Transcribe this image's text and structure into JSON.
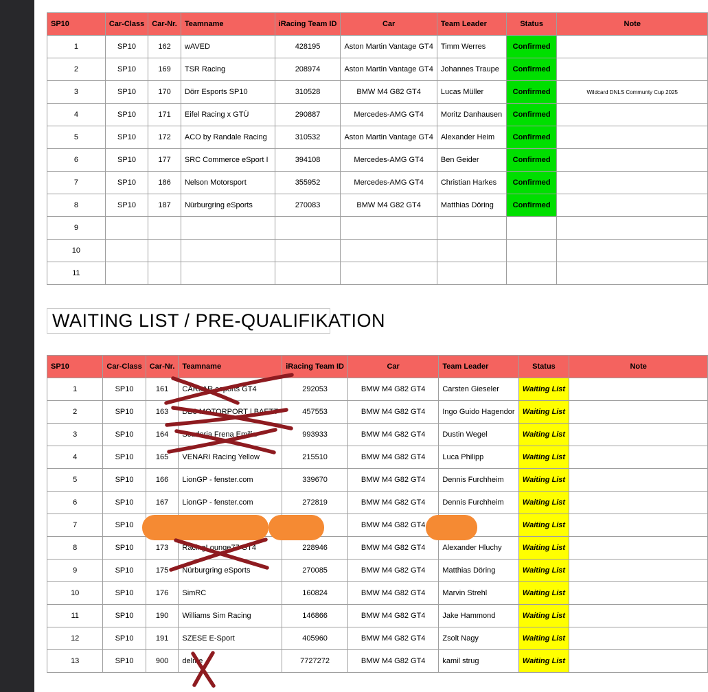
{
  "page": {
    "heading": "WAITING LIST / PRE-QUALIFIKATION"
  },
  "colors": {
    "header_bg": "#f4635f",
    "confirmed_bg": "#00df00",
    "waiting_bg": "#ffff00",
    "redaction_orange": "#f58a33",
    "cross_red": "#8e1b20",
    "sidebar_dark": "#28282b",
    "grid_line": "#9e9e9e"
  },
  "tables": [
    {
      "name": "confirmed",
      "headers": [
        "SP10",
        "Car-Class",
        "Car-Nr.",
        "Teamname",
        "iRacing Team ID",
        "Car",
        "Team Leader",
        "Status",
        "Note"
      ],
      "status_bg": "#00df00",
      "status_italic": false,
      "rows": [
        {
          "pos": "1",
          "car_class": "SP10",
          "car_nr": "162",
          "teamname": "wAVED",
          "team_id": "428195",
          "car": "Aston Martin Vantage GT4",
          "leader": "Timm Werres",
          "status": "Confirmed",
          "note": ""
        },
        {
          "pos": "2",
          "car_class": "SP10",
          "car_nr": "169",
          "teamname": "TSR Racing",
          "team_id": "208974",
          "car": "Aston Martin Vantage GT4",
          "leader": "Johannes Traupe",
          "status": "Confirmed",
          "note": ""
        },
        {
          "pos": "3",
          "car_class": "SP10",
          "car_nr": "170",
          "teamname": "Dörr Esports SP10",
          "team_id": "310528",
          "car": "BMW M4 G82 GT4",
          "leader": "Lucas Müller",
          "status": "Confirmed",
          "note": "Wildcard DNLS Communty Cup 2025"
        },
        {
          "pos": "4",
          "car_class": "SP10",
          "car_nr": "171",
          "teamname": "Eifel Racing x GTÜ",
          "team_id": "290887",
          "car": "Mercedes-AMG GT4",
          "leader": "Moritz Danhausen",
          "status": "Confirmed",
          "note": ""
        },
        {
          "pos": "5",
          "car_class": "SP10",
          "car_nr": "172",
          "teamname": "ACO by Randale Racing",
          "team_id": "310532",
          "car": "Aston Martin Vantage GT4",
          "leader": "Alexander Heim",
          "status": "Confirmed",
          "note": ""
        },
        {
          "pos": "6",
          "car_class": "SP10",
          "car_nr": "177",
          "teamname": "SRC Commerce eSport I",
          "team_id": "394108",
          "car": "Mercedes-AMG GT4",
          "leader": "Ben Geider",
          "status": "Confirmed",
          "note": ""
        },
        {
          "pos": "7",
          "car_class": "SP10",
          "car_nr": "186",
          "teamname": "Nelson Motorsport",
          "team_id": "355952",
          "car": "Mercedes-AMG GT4",
          "leader": "Christian Harkes",
          "status": "Confirmed",
          "note": ""
        },
        {
          "pos": "8",
          "car_class": "SP10",
          "car_nr": "187",
          "teamname": "Nürburgring eSports",
          "team_id": "270083",
          "car": "BMW M4 G82 GT4",
          "leader": "Matthias Döring",
          "status": "Confirmed",
          "note": ""
        },
        {
          "pos": "9",
          "car_class": "",
          "car_nr": "",
          "teamname": "",
          "team_id": "",
          "car": "",
          "leader": "",
          "status": "",
          "note": ""
        },
        {
          "pos": "10",
          "car_class": "",
          "car_nr": "",
          "teamname": "",
          "team_id": "",
          "car": "",
          "leader": "",
          "status": "",
          "note": ""
        },
        {
          "pos": "11",
          "car_class": "",
          "car_nr": "",
          "teamname": "",
          "team_id": "",
          "car": "",
          "leader": "",
          "status": "",
          "note": ""
        }
      ]
    },
    {
      "name": "waiting",
      "headers": [
        "SP10",
        "Car-Class",
        "Car-Nr.",
        "Teamname",
        "iRacing Team ID",
        "Car",
        "Team Leader",
        "Status",
        "Note"
      ],
      "status_bg": "#ffff00",
      "status_italic": true,
      "rows": [
        {
          "pos": "1",
          "car_class": "SP10",
          "car_nr": "161",
          "teamname": "CARLAR esports GT4",
          "team_id": "292053",
          "car": "BMW M4 G82 GT4",
          "leader": "Carsten Gieseler",
          "status": "Waiting List",
          "note": ""
        },
        {
          "pos": "2",
          "car_class": "SP10",
          "car_nr": "163",
          "teamname": "DB3 MOTORPORT | BAETT",
          "team_id": "457553",
          "car": "BMW M4 G82 GT4",
          "leader": "Ingo Guido Hagendor",
          "status": "Waiting List",
          "note": ""
        },
        {
          "pos": "3",
          "car_class": "SP10",
          "car_nr": "164",
          "teamname": "Scuderia Frena Emilia",
          "team_id": "993933",
          "car": "BMW M4 G82 GT4",
          "leader": "Dustin Wegel",
          "status": "Waiting List",
          "note": ""
        },
        {
          "pos": "4",
          "car_class": "SP10",
          "car_nr": "165",
          "teamname": "VENARI Racing Yellow",
          "team_id": "215510",
          "car": "BMW M4 G82 GT4",
          "leader": "Luca Philipp",
          "status": "Waiting List",
          "note": ""
        },
        {
          "pos": "5",
          "car_class": "SP10",
          "car_nr": "166",
          "teamname": "LionGP - fenster.com",
          "team_id": "339670",
          "car": "BMW M4 G82 GT4",
          "leader": "Dennis Furchheim",
          "status": "Waiting List",
          "note": ""
        },
        {
          "pos": "6",
          "car_class": "SP10",
          "car_nr": "167",
          "teamname": "LionGP - fenster.com",
          "team_id": "272819",
          "car": "BMW M4 G82 GT4",
          "leader": "Dennis Furchheim",
          "status": "Waiting List",
          "note": ""
        },
        {
          "pos": "7",
          "car_class": "SP10",
          "car_nr": "",
          "teamname": "",
          "team_id": "",
          "car": "BMW M4 G82 GT4",
          "leader": "",
          "status": "Waiting List",
          "note": ""
        },
        {
          "pos": "8",
          "car_class": "SP10",
          "car_nr": "173",
          "teamname": "RacingLounge77 GT4",
          "team_id": "228946",
          "car": "BMW M4 G82 GT4",
          "leader": "Alexander Hluchy",
          "status": "Waiting List",
          "note": ""
        },
        {
          "pos": "9",
          "car_class": "SP10",
          "car_nr": "175",
          "teamname": "Nürburgring eSports",
          "team_id": "270085",
          "car": "BMW M4 G82 GT4",
          "leader": "Matthias Döring",
          "status": "Waiting List",
          "note": ""
        },
        {
          "pos": "10",
          "car_class": "SP10",
          "car_nr": "176",
          "teamname": "SimRC",
          "team_id": "160824",
          "car": "BMW M4 G82 GT4",
          "leader": "Marvin Strehl",
          "status": "Waiting List",
          "note": ""
        },
        {
          "pos": "11",
          "car_class": "SP10",
          "car_nr": "190",
          "teamname": "Williams Sim Racing",
          "team_id": "146866",
          "car": "BMW M4 G82 GT4",
          "leader": "Jake Hammond",
          "status": "Waiting List",
          "note": ""
        },
        {
          "pos": "12",
          "car_class": "SP10",
          "car_nr": "191",
          "teamname": "SZESE E-Sport",
          "team_id": "405960",
          "car": "BMW M4 G82 GT4",
          "leader": "Zsolt Nagy",
          "status": "Waiting List",
          "note": ""
        },
        {
          "pos": "13",
          "car_class": "SP10",
          "car_nr": "900",
          "teamname": "delme",
          "team_id": "7727272",
          "car": "BMW M4 G82 GT4",
          "leader": "kamil strug",
          "status": "Waiting List",
          "note": ""
        }
      ]
    }
  ]
}
